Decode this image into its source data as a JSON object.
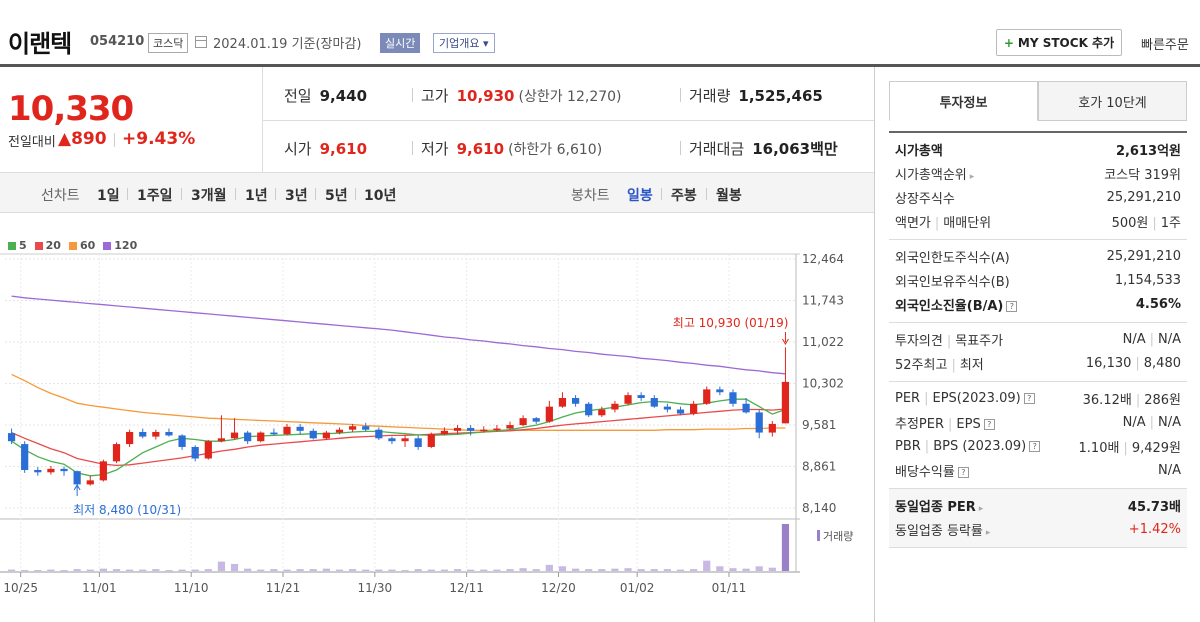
{
  "header": {
    "name": "이랜텍",
    "code": "054210",
    "market": "코스닥",
    "date_text": "2024.01.19  기준(장마감)",
    "realtime_label": "실시간",
    "company_info_label": "기업개요",
    "mystock_label": "MY STOCK 추가",
    "quick_order_label": "빠른주문"
  },
  "summary": {
    "price": "10,330",
    "change_label": "전일대비",
    "change_value": "▲890",
    "change_pct": "+9.43%",
    "prev_label": "전일",
    "prev_value": "9,440",
    "open_label": "시가",
    "open_value": "9,610",
    "high_label": "고가",
    "high_value": "10,930",
    "upper_limit": "(상한가 12,270)",
    "low_label": "저가",
    "low_value": "9,610",
    "lower_limit": "(하한가 6,610)",
    "volume_label": "거래량",
    "volume_value": "1,525,465",
    "amount_label": "거래대금",
    "amount_value": "16,063",
    "amount_unit": "백만"
  },
  "period_bar": {
    "line_label": "선차트",
    "line_options": [
      "1일",
      "1주일",
      "3개월",
      "1년",
      "3년",
      "5년",
      "10년"
    ],
    "candle_label": "봉차트",
    "candle_options": [
      "일봉",
      "주봉",
      "월봉"
    ],
    "candle_selected": 0
  },
  "chart_data": {
    "type": "candlestick",
    "legend": [
      "5",
      "20",
      "60",
      "120"
    ],
    "legend_colors": [
      "#4caf50",
      "#e94b4b",
      "#f59a3a",
      "#9b6ad6"
    ],
    "y_ticks": [
      "12,464",
      "11,743",
      "11,022",
      "10,302",
      "9,581",
      "8,861",
      "8,140"
    ],
    "ylim": [
      8140,
      12464
    ],
    "x_ticks": [
      "10/25",
      "11/01",
      "11/10",
      "11/21",
      "11/30",
      "12/11",
      "12/20",
      "01/02",
      "01/11"
    ],
    "high_annotation": "최고 10,930 (01/19)",
    "low_annotation": "최저 8,480 (10/31)",
    "volume_label": "거래량",
    "up_color": "#e0261c",
    "down_color": "#2b6fd6",
    "candles": [
      [
        9440,
        9300,
        9520,
        9250
      ],
      [
        9250,
        8800,
        9300,
        8750
      ],
      [
        8800,
        8760,
        8850,
        8700
      ],
      [
        8760,
        8820,
        8870,
        8720
      ],
      [
        8820,
        8780,
        8860,
        8700
      ],
      [
        8780,
        8550,
        8790,
        8480
      ],
      [
        8550,
        8620,
        8700,
        8530
      ],
      [
        8620,
        8950,
        8980,
        8600
      ],
      [
        8950,
        9250,
        9280,
        8920
      ],
      [
        9250,
        9460,
        9500,
        9200
      ],
      [
        9460,
        9380,
        9520,
        9350
      ],
      [
        9380,
        9460,
        9500,
        9330
      ],
      [
        9460,
        9400,
        9520,
        9380
      ],
      [
        9400,
        9200,
        9420,
        9150
      ],
      [
        9200,
        9000,
        9230,
        8950
      ],
      [
        9000,
        9300,
        9320,
        8980
      ],
      [
        9300,
        9350,
        9750,
        9280
      ],
      [
        9350,
        9450,
        9700,
        9330
      ],
      [
        9450,
        9300,
        9480,
        9250
      ],
      [
        9300,
        9450,
        9470,
        9280
      ],
      [
        9450,
        9420,
        9520,
        9400
      ],
      [
        9420,
        9550,
        9600,
        9400
      ],
      [
        9550,
        9480,
        9600,
        9420
      ],
      [
        9480,
        9350,
        9520,
        9330
      ],
      [
        9350,
        9450,
        9480,
        9320
      ],
      [
        9450,
        9500,
        9540,
        9420
      ],
      [
        9500,
        9560,
        9600,
        9460
      ],
      [
        9560,
        9500,
        9620,
        9470
      ],
      [
        9500,
        9350,
        9540,
        9320
      ],
      [
        9350,
        9300,
        9380,
        9250
      ],
      [
        9300,
        9350,
        9400,
        9200
      ],
      [
        9350,
        9200,
        9400,
        9150
      ],
      [
        9200,
        9420,
        9450,
        9180
      ],
      [
        9420,
        9480,
        9540,
        9400
      ],
      [
        9480,
        9530,
        9580,
        9420
      ],
      [
        9530,
        9480,
        9580,
        9400
      ],
      [
        9480,
        9500,
        9560,
        9450
      ],
      [
        9500,
        9520,
        9580,
        9470
      ],
      [
        9520,
        9580,
        9640,
        9500
      ],
      [
        9580,
        9700,
        9750,
        9560
      ],
      [
        9700,
        9640,
        9720,
        9600
      ],
      [
        9640,
        9900,
        10000,
        9620
      ],
      [
        9900,
        10050,
        10150,
        9880
      ],
      [
        10050,
        9950,
        10100,
        9900
      ],
      [
        9950,
        9750,
        9980,
        9720
      ],
      [
        9750,
        9850,
        9900,
        9720
      ],
      [
        9850,
        9950,
        10000,
        9800
      ],
      [
        9950,
        10100,
        10150,
        9920
      ],
      [
        10100,
        10050,
        10150,
        10000
      ],
      [
        10050,
        9900,
        10100,
        9880
      ],
      [
        9900,
        9850,
        9950,
        9800
      ],
      [
        9850,
        9780,
        9900,
        9750
      ],
      [
        9780,
        9950,
        10000,
        9750
      ],
      [
        9950,
        10200,
        10250,
        9930
      ],
      [
        10200,
        10150,
        10250,
        10100
      ],
      [
        10150,
        9950,
        10200,
        9900
      ],
      [
        9950,
        9800,
        10050,
        9780
      ],
      [
        9800,
        9450,
        9850,
        9350
      ],
      [
        9450,
        9600,
        9650,
        9380
      ],
      [
        9610,
        10330,
        10930,
        9610
      ]
    ],
    "volumes": [
      0.03,
      0.02,
      0.02,
      0.03,
      0.02,
      0.04,
      0.03,
      0.05,
      0.04,
      0.03,
      0.03,
      0.04,
      0.02,
      0.03,
      0.03,
      0.04,
      0.2,
      0.15,
      0.05,
      0.03,
      0.04,
      0.03,
      0.04,
      0.04,
      0.05,
      0.03,
      0.04,
      0.03,
      0.03,
      0.03,
      0.02,
      0.04,
      0.03,
      0.03,
      0.04,
      0.03,
      0.03,
      0.03,
      0.04,
      0.06,
      0.04,
      0.13,
      0.1,
      0.05,
      0.04,
      0.04,
      0.05,
      0.06,
      0.04,
      0.04,
      0.04,
      0.03,
      0.04,
      0.22,
      0.1,
      0.06,
      0.05,
      0.1,
      0.07,
      1.0
    ],
    "ma5": [
      9300,
      9150,
      9030,
      8950,
      8900,
      8750,
      8700,
      8720,
      8800,
      8950,
      9100,
      9200,
      9300,
      9350,
      9330,
      9300,
      9300,
      9330,
      9380,
      9390,
      9400,
      9410,
      9420,
      9430,
      9430,
      9440,
      9460,
      9470,
      9470,
      9450,
      9430,
      9410,
      9400,
      9410,
      9420,
      9440,
      9460,
      9480,
      9500,
      9540,
      9580,
      9640,
      9720,
      9790,
      9830,
      9860,
      9890,
      9930,
      9970,
      9990,
      9980,
      9950,
      9930,
      9960,
      10000,
      10030,
      10030,
      9900,
      9770,
      9850
    ],
    "ma20": [
      9450,
      9350,
      9260,
      9170,
      9100,
      9000,
      8950,
      8900,
      8880,
      8890,
      8920,
      8950,
      8980,
      9010,
      9050,
      9090,
      9130,
      9160,
      9200,
      9230,
      9250,
      9270,
      9290,
      9310,
      9330,
      9350,
      9370,
      9380,
      9390,
      9400,
      9400,
      9410,
      9420,
      9430,
      9440,
      9450,
      9460,
      9470,
      9480,
      9500,
      9520,
      9550,
      9580,
      9600,
      9620,
      9640,
      9660,
      9680,
      9700,
      9720,
      9740,
      9760,
      9780,
      9800,
      9820,
      9840,
      9850,
      9850,
      9840,
      9860
    ],
    "ma60": [
      10460,
      10350,
      10230,
      10130,
      10050,
      9960,
      9920,
      9890,
      9860,
      9830,
      9800,
      9780,
      9760,
      9740,
      9720,
      9700,
      9690,
      9680,
      9670,
      9660,
      9650,
      9640,
      9630,
      9620,
      9610,
      9600,
      9590,
      9570,
      9560,
      9550,
      9540,
      9530,
      9520,
      9510,
      9500,
      9490,
      9490,
      9490,
      9490,
      9490,
      9490,
      9490,
      9490,
      9490,
      9490,
      9490,
      9490,
      9490,
      9490,
      9490,
      9500,
      9500,
      9500,
      9510,
      9510,
      9510,
      9520,
      9520,
      9530,
      9530
    ],
    "ma120": [
      11820,
      11790,
      11770,
      11750,
      11730,
      11710,
      11690,
      11670,
      11650,
      11630,
      11610,
      11590,
      11570,
      11550,
      11530,
      11510,
      11490,
      11470,
      11450,
      11430,
      11410,
      11390,
      11370,
      11350,
      11330,
      11310,
      11290,
      11270,
      11250,
      11230,
      11200,
      11170,
      11140,
      11110,
      11090,
      11060,
      11040,
      11010,
      10990,
      10960,
      10940,
      10910,
      10890,
      10860,
      10840,
      10810,
      10790,
      10770,
      10740,
      10720,
      10700,
      10670,
      10650,
      10620,
      10600,
      10570,
      10540,
      10520,
      10490,
      10470
    ]
  },
  "invest_panel": {
    "tabs": [
      "투자정보",
      "호가 10단계"
    ],
    "active_tab": 0,
    "group1": [
      {
        "k": "시가총액",
        "v": "2,613억원",
        "bold": true
      },
      {
        "k": "시가총액순위",
        "v": "코스닥 319위",
        "arrow": true
      },
      {
        "k": "상장주식수",
        "v": "25,291,210"
      },
      {
        "k": "액면가",
        "k2": "매매단위",
        "v": "500원",
        "v2": "1주"
      }
    ],
    "group2": [
      {
        "k": "외국인한도주식수(A)",
        "v": "25,291,210"
      },
      {
        "k": "외국인보유주식수(B)",
        "v": "1,154,533"
      },
      {
        "k": "외국인소진율(B/A)",
        "v": "4.56%",
        "bold": true,
        "q": true
      }
    ],
    "group3": [
      {
        "k": "투자의견",
        "k2": "목표주가",
        "v": "N/A",
        "v2": "N/A"
      },
      {
        "k": "52주최고",
        "k2": "최저",
        "v": "16,130",
        "v2": "8,480"
      }
    ],
    "group4": [
      {
        "k": "PER",
        "k2": "EPS(2023.09)",
        "v": "36.12배",
        "v2": "286원",
        "q": true
      },
      {
        "k": "추정PER",
        "k2": "EPS",
        "v": "N/A",
        "v2": "N/A",
        "q": true
      },
      {
        "k": "PBR",
        "k2": "BPS (2023.09)",
        "v": "1.10배",
        "v2": "9,429원",
        "q": true
      },
      {
        "k": "배당수익률",
        "v": "N/A",
        "q": true
      }
    ],
    "group5": [
      {
        "k": "동일업종 PER",
        "v": "45.73배",
        "bold": true,
        "arrow": true
      },
      {
        "k": "동일업종 등락률",
        "v": "+1.42%",
        "red": true,
        "arrow": true
      }
    ],
    "question_mark": "?",
    "arrow_glyph": "▸",
    "pipe": "|"
  }
}
